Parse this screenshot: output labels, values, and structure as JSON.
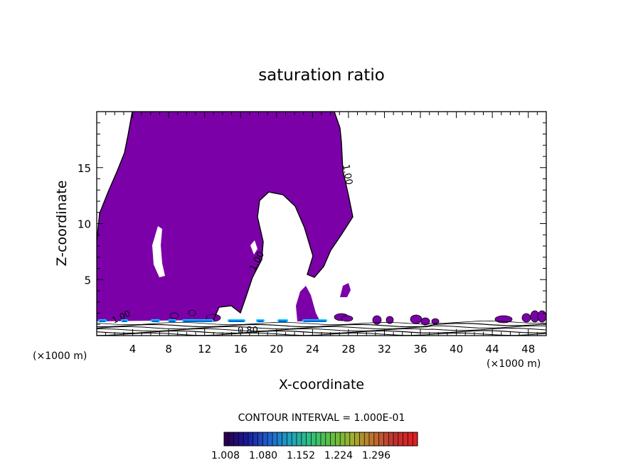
{
  "chart_data": {
    "type": "contour",
    "title": "saturation ratio",
    "xlabel": "X-coordinate",
    "ylabel": "Z-coordinate",
    "x_unit_label": "(×1000 m)",
    "x_unit_label_right": "(×1000 m)",
    "xlim": [
      0,
      50
    ],
    "ylim": [
      0,
      20
    ],
    "x_ticks": [
      4,
      8,
      12,
      16,
      20,
      24,
      28,
      32,
      36,
      40,
      44,
      48
    ],
    "y_ticks": [
      5,
      10,
      15
    ],
    "contour_interval_text": "CONTOUR INTERVAL = 1.000E-01",
    "contour_labels": [
      "1.00",
      "1.00",
      "1.00",
      "0.80"
    ],
    "colorbar": {
      "tick_labels": [
        "1.008",
        "1.080",
        "1.152",
        "1.224",
        "1.296"
      ],
      "colors": [
        "#2a0050",
        "#1a1a9a",
        "#2060d0",
        "#20a0c0",
        "#30c080",
        "#60c040",
        "#a0b030",
        "#c07030",
        "#c03030",
        "#e02020"
      ]
    },
    "fill_color": "#7b00a8",
    "high_color": "#00c8ff",
    "grid": false
  }
}
